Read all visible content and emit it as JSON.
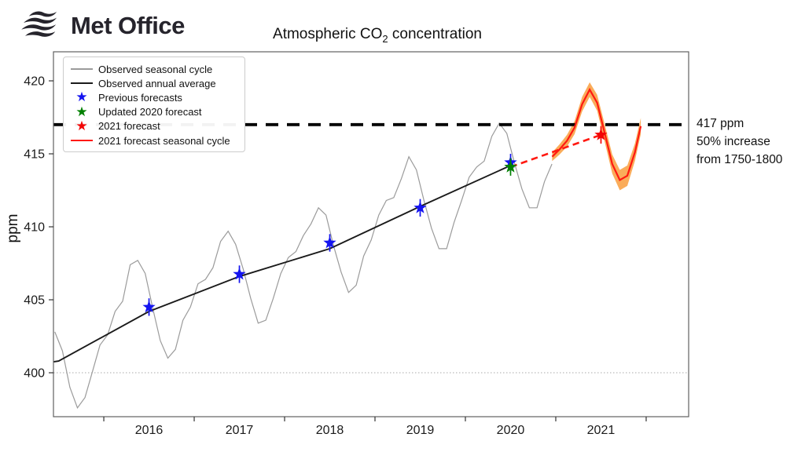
{
  "logo": {
    "brand": "Met Office"
  },
  "title": {
    "prefix": "Atmospheric CO",
    "sub": "2",
    "suffix": " concentration"
  },
  "ylabel": "ppm",
  "annotation": {
    "line1": "417 ppm",
    "line2": "50% increase",
    "line3": "from 1750-1800"
  },
  "chart_data": {
    "type": "line",
    "title": "Atmospheric CO2 concentration",
    "xlabel": "",
    "ylabel": "ppm",
    "axes": {
      "x_min": 2015.443,
      "x_max": 2022.47,
      "y_min": 396.99,
      "y_max": 421.99,
      "grid": false
    },
    "x_axis": {
      "tick_positions": [
        2016,
        2017,
        2018,
        2019,
        2020,
        2021,
        2022
      ],
      "label_positions": [
        2016.5,
        2017.5,
        2018.5,
        2019.5,
        2020.5,
        2021.5
      ],
      "labels": [
        "2016",
        "2017",
        "2018",
        "2019",
        "2020",
        "2021"
      ]
    },
    "y_axis": {
      "ticks": [
        400,
        405,
        410,
        415,
        420
      ],
      "labels": [
        "400",
        "405",
        "410",
        "415",
        "420"
      ]
    },
    "colors": {
      "seasonal": "#9b9b9b",
      "annual": "#1a1a1a",
      "previous": "#1414f0",
      "updated": "#008000",
      "forecast": "#f20505",
      "forecast_line": "#ff1911",
      "band": "#f9a348",
      "threshold": "#000000",
      "baseline": "#aaaaaa",
      "spine": "#606060",
      "tick": "#333333"
    },
    "threshold_line": {
      "value": 417,
      "style": "dashed",
      "color": "#000000"
    },
    "baseline_line": {
      "value": 400,
      "style": "dotted",
      "color": "#aaaaaa"
    },
    "series": [
      {
        "name": "Observed seasonal cycle",
        "type": "line",
        "points": [
          [
            2015.458,
            402.8
          ],
          [
            2015.542,
            401.5
          ],
          [
            2015.625,
            399.0
          ],
          [
            2015.708,
            397.6
          ],
          [
            2015.792,
            398.3
          ],
          [
            2015.875,
            400.1
          ],
          [
            2015.958,
            401.9
          ],
          [
            2016.042,
            402.6
          ],
          [
            2016.125,
            404.2
          ],
          [
            2016.208,
            404.9
          ],
          [
            2016.292,
            407.4
          ],
          [
            2016.375,
            407.7
          ],
          [
            2016.458,
            406.8
          ],
          [
            2016.542,
            404.4
          ],
          [
            2016.625,
            402.2
          ],
          [
            2016.708,
            401.0
          ],
          [
            2016.792,
            401.6
          ],
          [
            2016.875,
            403.6
          ],
          [
            2016.958,
            404.5
          ],
          [
            2017.042,
            406.1
          ],
          [
            2017.125,
            406.4
          ],
          [
            2017.208,
            407.2
          ],
          [
            2017.292,
            409.0
          ],
          [
            2017.375,
            409.7
          ],
          [
            2017.458,
            408.8
          ],
          [
            2017.542,
            407.1
          ],
          [
            2017.625,
            405.1
          ],
          [
            2017.708,
            403.4
          ],
          [
            2017.792,
            403.6
          ],
          [
            2017.875,
            405.1
          ],
          [
            2017.958,
            406.8
          ],
          [
            2018.042,
            407.9
          ],
          [
            2018.125,
            408.3
          ],
          [
            2018.208,
            409.4
          ],
          [
            2018.292,
            410.2
          ],
          [
            2018.375,
            411.3
          ],
          [
            2018.458,
            410.8
          ],
          [
            2018.542,
            408.7
          ],
          [
            2018.625,
            406.9
          ],
          [
            2018.708,
            405.5
          ],
          [
            2018.792,
            406.0
          ],
          [
            2018.875,
            408.0
          ],
          [
            2018.958,
            409.1
          ],
          [
            2019.042,
            410.8
          ],
          [
            2019.125,
            411.8
          ],
          [
            2019.208,
            412.0
          ],
          [
            2019.292,
            413.3
          ],
          [
            2019.375,
            414.8
          ],
          [
            2019.458,
            413.9
          ],
          [
            2019.542,
            411.8
          ],
          [
            2019.625,
            409.9
          ],
          [
            2019.708,
            408.5
          ],
          [
            2019.792,
            408.5
          ],
          [
            2019.875,
            410.3
          ],
          [
            2019.958,
            411.8
          ],
          [
            2020.042,
            413.4
          ],
          [
            2020.125,
            414.1
          ],
          [
            2020.208,
            414.5
          ],
          [
            2020.292,
            416.2
          ],
          [
            2020.375,
            417.1
          ],
          [
            2020.458,
            416.4
          ],
          [
            2020.542,
            414.4
          ],
          [
            2020.625,
            412.6
          ],
          [
            2020.708,
            411.3
          ],
          [
            2020.792,
            411.3
          ],
          [
            2020.875,
            413.1
          ],
          [
            2020.958,
            414.3
          ]
        ]
      },
      {
        "name": "Observed annual average",
        "type": "line",
        "points": [
          [
            2015.443,
            400.75
          ],
          [
            2015.5,
            400.8
          ],
          [
            2016.5,
            404.2
          ],
          [
            2017.5,
            406.6
          ],
          [
            2018.5,
            408.5
          ],
          [
            2019.5,
            411.4
          ],
          [
            2020.5,
            414.2
          ]
        ]
      },
      {
        "name": "Previous forecasts",
        "type": "scatter-star",
        "error": 0.6,
        "points": [
          [
            2016.5,
            404.5
          ],
          [
            2017.5,
            406.75
          ],
          [
            2018.5,
            408.9
          ],
          [
            2019.5,
            411.3
          ],
          [
            2020.5,
            414.4
          ]
        ]
      },
      {
        "name": "Updated 2020 forecast",
        "type": "scatter-star",
        "error": 0.6,
        "points": [
          [
            2020.5,
            414.1
          ]
        ]
      },
      {
        "name": "2021 forecast",
        "type": "scatter-star",
        "error": 0.6,
        "points": [
          [
            2021.5,
            416.3
          ]
        ]
      },
      {
        "name": "Forecast connector",
        "type": "dashed-line",
        "points": [
          [
            2020.5,
            414.1
          ],
          [
            2021.5,
            416.3
          ]
        ]
      },
      {
        "name": "2021 forecast seasonal cycle",
        "type": "line-with-band",
        "points_with_halfwidth": [
          [
            2020.96,
            414.8,
            0.3
          ],
          [
            2021.042,
            415.3,
            0.35
          ],
          [
            2021.125,
            415.9,
            0.4
          ],
          [
            2021.208,
            416.8,
            0.45
          ],
          [
            2021.292,
            418.4,
            0.5
          ],
          [
            2021.375,
            419.4,
            0.5
          ],
          [
            2021.458,
            418.5,
            0.55
          ],
          [
            2021.542,
            416.4,
            0.6
          ],
          [
            2021.625,
            414.3,
            0.65
          ],
          [
            2021.708,
            413.2,
            0.7
          ],
          [
            2021.792,
            413.5,
            0.7
          ],
          [
            2021.875,
            415.1,
            0.6
          ],
          [
            2021.94,
            416.9,
            0.55
          ]
        ]
      }
    ],
    "legend": [
      {
        "marker": "line",
        "color": "#9b9b9b",
        "label": "Observed seasonal cycle"
      },
      {
        "marker": "line",
        "color": "#1a1a1a",
        "label": "Observed annual average"
      },
      {
        "marker": "star",
        "color": "#1414f0",
        "label": "Previous forecasts"
      },
      {
        "marker": "star",
        "color": "#008000",
        "label": "Updated 2020 forecast"
      },
      {
        "marker": "star",
        "color": "#f20505",
        "label": "2021 forecast"
      },
      {
        "marker": "line",
        "color": "#ff1911",
        "label": "2021 forecast seasonal cycle"
      }
    ],
    "legend_position": "upper left"
  }
}
